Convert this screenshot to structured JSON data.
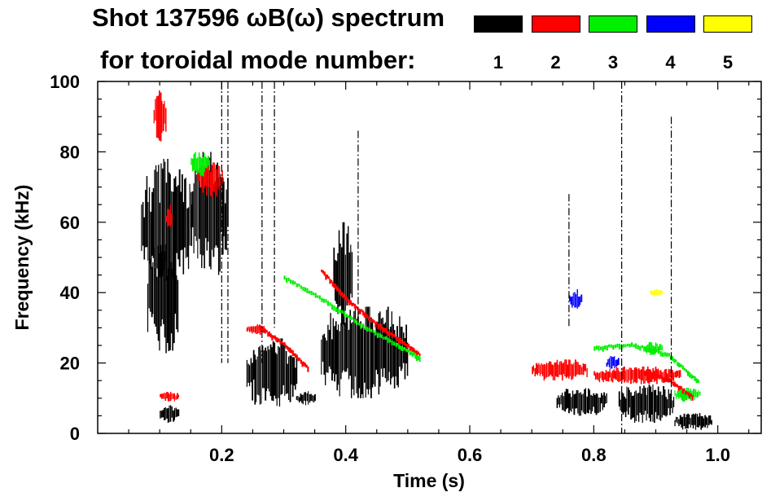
{
  "chart_data": {
    "type": "heatmap",
    "title_line1": "Shot 137596 ωB(ω) spectrum",
    "title_line2": "for toroidal mode number:",
    "xlabel": "Time (s)",
    "ylabel": "Frequency (kHz)",
    "xlim": [
      0.0,
      1.07
    ],
    "ylim": [
      0,
      100
    ],
    "x_tick_values": [
      0.2,
      0.4,
      0.6,
      0.8,
      1.0
    ],
    "x_tick_labels": [
      "0.2",
      "0.4",
      "0.6",
      "0.8",
      "1.0"
    ],
    "y_tick_values": [
      0,
      20,
      40,
      60,
      80,
      100
    ],
    "y_tick_labels": [
      "0",
      "20",
      "40",
      "60",
      "80",
      "100"
    ],
    "legend": [
      {
        "mode": "1",
        "color": "#000000"
      },
      {
        "mode": "2",
        "color": "#ff0000"
      },
      {
        "mode": "3",
        "color": "#00ee00"
      },
      {
        "mode": "4",
        "color": "#0000ff"
      },
      {
        "mode": "5",
        "color": "#ffff00"
      }
    ],
    "blobs": [
      {
        "mode": "1",
        "t": [
          0.07,
          0.15
        ],
        "f": [
          40,
          78
        ]
      },
      {
        "mode": "1",
        "t": [
          0.08,
          0.13
        ],
        "f": [
          22,
          55
        ]
      },
      {
        "mode": "1",
        "t": [
          0.15,
          0.21
        ],
        "f": [
          45,
          80
        ]
      },
      {
        "mode": "1",
        "t": [
          0.1,
          0.13
        ],
        "f": [
          3,
          8
        ]
      },
      {
        "mode": "1",
        "t": [
          0.24,
          0.32
        ],
        "f": [
          7,
          27
        ]
      },
      {
        "mode": "1",
        "t": [
          0.32,
          0.35
        ],
        "f": [
          8,
          12
        ]
      },
      {
        "mode": "1",
        "t": [
          0.36,
          0.5
        ],
        "f": [
          10,
          36
        ]
      },
      {
        "mode": "1",
        "t": [
          0.38,
          0.41
        ],
        "f": [
          30,
          60
        ]
      },
      {
        "mode": "1",
        "t": [
          0.74,
          0.82
        ],
        "f": [
          5,
          13
        ]
      },
      {
        "mode": "1",
        "t": [
          0.84,
          0.93
        ],
        "f": [
          3,
          14
        ]
      },
      {
        "mode": "1",
        "t": [
          0.93,
          0.99
        ],
        "f": [
          1,
          6
        ]
      },
      {
        "mode": "2",
        "t": [
          0.09,
          0.11
        ],
        "f": [
          83,
          98
        ]
      },
      {
        "mode": "2",
        "t": [
          0.11,
          0.12
        ],
        "f": [
          58,
          65
        ]
      },
      {
        "mode": "2",
        "t": [
          0.16,
          0.2
        ],
        "f": [
          67,
          77
        ]
      },
      {
        "mode": "2",
        "t": [
          0.1,
          0.13
        ],
        "f": [
          9,
          12
        ]
      },
      {
        "mode": "2",
        "t": [
          0.24,
          0.27
        ],
        "f": [
          28,
          31
        ]
      },
      {
        "mode": "2",
        "t": [
          0.7,
          0.79
        ],
        "f": [
          15,
          21
        ]
      },
      {
        "mode": "2",
        "t": [
          0.8,
          0.94
        ],
        "f": [
          14,
          19
        ]
      },
      {
        "mode": "3",
        "t": [
          0.15,
          0.18
        ],
        "f": [
          73,
          80
        ]
      },
      {
        "mode": "3",
        "t": [
          0.88,
          0.91
        ],
        "f": [
          22,
          26
        ]
      },
      {
        "mode": "3",
        "t": [
          0.93,
          0.97
        ],
        "f": [
          9,
          13
        ]
      },
      {
        "mode": "4",
        "t": [
          0.76,
          0.78
        ],
        "f": [
          35,
          41
        ]
      },
      {
        "mode": "4",
        "t": [
          0.82,
          0.84
        ],
        "f": [
          18,
          22
        ]
      },
      {
        "mode": "5",
        "t": [
          0.89,
          0.91
        ],
        "f": [
          39,
          41
        ]
      }
    ],
    "chirps": [
      {
        "mode": "2",
        "x": [
          0.36,
          0.4,
          0.44,
          0.48,
          0.52
        ],
        "y": [
          46,
          38,
          32,
          27,
          22
        ]
      },
      {
        "mode": "3",
        "x": [
          0.3,
          0.36,
          0.42,
          0.48,
          0.52
        ],
        "y": [
          44,
          38,
          31,
          25,
          21
        ]
      },
      {
        "mode": "2",
        "x": [
          0.26,
          0.3,
          0.34
        ],
        "y": [
          30,
          25,
          18
        ]
      },
      {
        "mode": "3",
        "x": [
          0.8,
          0.86,
          0.92,
          0.97
        ],
        "y": [
          24,
          25,
          22,
          14
        ]
      },
      {
        "mode": "2",
        "x": [
          0.88,
          0.92,
          0.96
        ],
        "y": [
          17,
          15,
          10
        ]
      }
    ],
    "vlines": [
      {
        "mode": "1",
        "t": 0.2,
        "f": [
          20,
          100
        ]
      },
      {
        "mode": "1",
        "t": 0.21,
        "f": [
          20,
          100
        ]
      },
      {
        "mode": "1",
        "t": 0.265,
        "f": [
          20,
          100
        ]
      },
      {
        "mode": "1",
        "t": 0.285,
        "f": [
          30,
          100
        ]
      },
      {
        "mode": "1",
        "t": 0.845,
        "f": [
          0,
          100
        ]
      },
      {
        "mode": "1",
        "t": 0.925,
        "f": [
          10,
          90
        ]
      },
      {
        "mode": "1",
        "t": 0.76,
        "f": [
          30,
          68
        ]
      },
      {
        "mode": "1",
        "t": 0.42,
        "f": [
          20,
          86
        ]
      }
    ]
  }
}
